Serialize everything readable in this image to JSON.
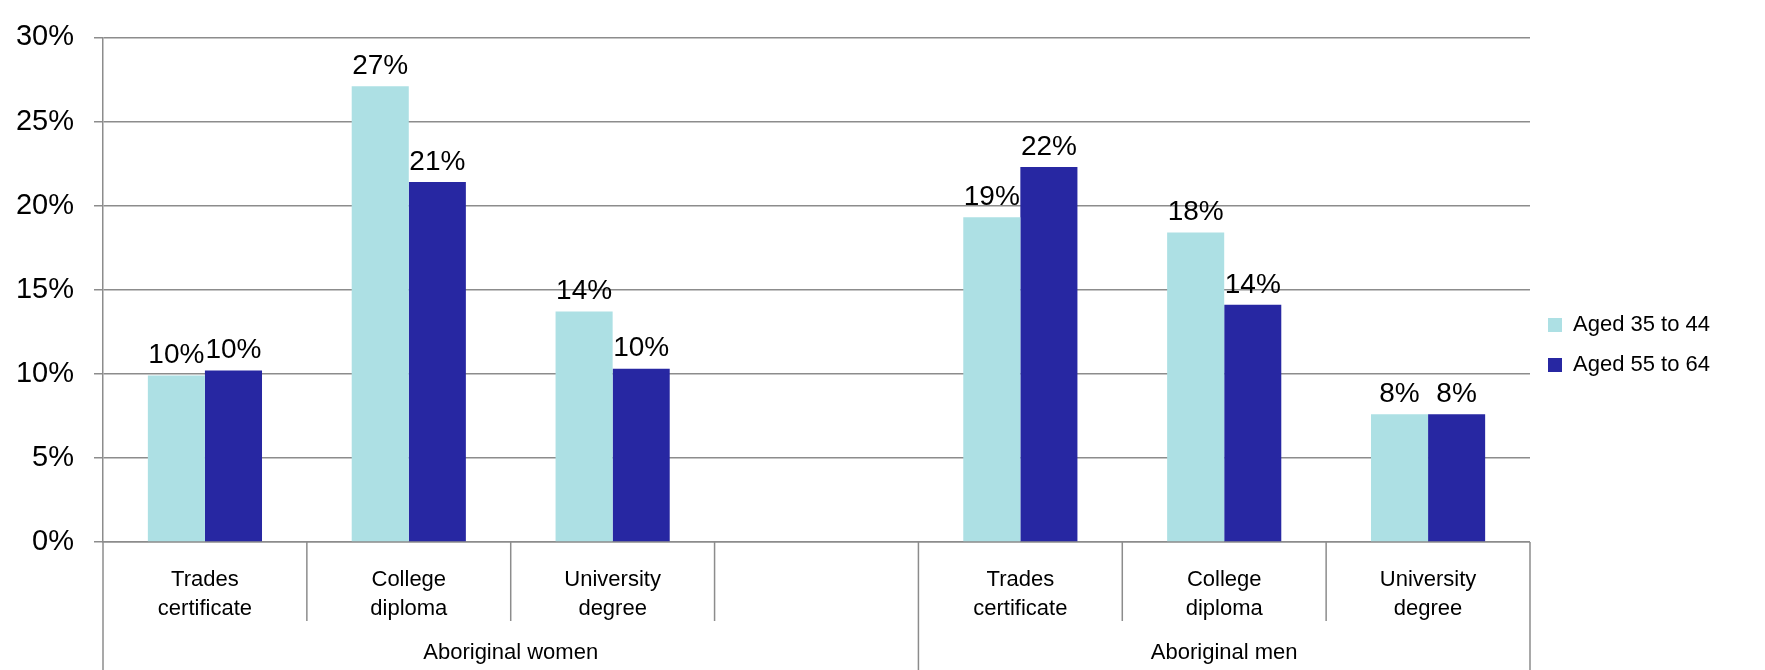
{
  "chart_data": {
    "type": "bar",
    "categories": [
      "Trades certificate",
      "College diploma",
      "University degree",
      null,
      "Trades certificate",
      "College diploma",
      "University degree"
    ],
    "series": [
      {
        "name": "Aged 35 to 44",
        "color": "#ade0e4",
        "values": [
          9.9,
          27.1,
          13.7,
          null,
          19.3,
          18.4,
          7.6
        ],
        "value_labels": [
          "10%",
          "27%",
          "14%",
          null,
          "19%",
          "18%",
          "8%"
        ]
      },
      {
        "name": "Aged 55 to 64",
        "color": "#2727a2",
        "values": [
          10.2,
          21.4,
          10.3,
          null,
          22.3,
          14.1,
          7.6
        ],
        "value_labels": [
          "10%",
          "21%",
          "10%",
          null,
          "22%",
          "14%",
          "8%"
        ]
      }
    ],
    "ylim": [
      0,
      30
    ],
    "yticks": [
      {
        "value": 0,
        "label": "0%"
      },
      {
        "value": 5,
        "label": "5%"
      },
      {
        "value": 10,
        "label": "10%"
      },
      {
        "value": 15,
        "label": "15%"
      },
      {
        "value": 20,
        "label": "20%"
      },
      {
        "value": 25,
        "label": "25%"
      },
      {
        "value": 30,
        "label": "30%"
      }
    ],
    "grid": "y",
    "legend": "right",
    "annotations": [
      "Aboriginal women",
      "Aboriginal men"
    ]
  }
}
